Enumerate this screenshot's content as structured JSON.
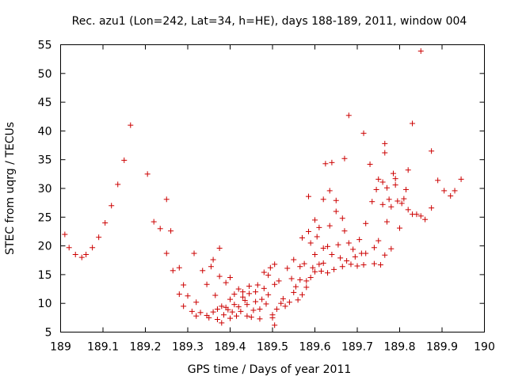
{
  "chart_data": {
    "type": "scatter",
    "title": "Rec. azu1 (Lon=242, Lat=34, h=HE), days 188-189, 2011, window 004",
    "xlabel": "GPS time / Days of year 2011",
    "ylabel": "STEC from uqrg / TECUs",
    "xlim": [
      189,
      190
    ],
    "ylim": [
      5,
      55
    ],
    "xticks": [
      189,
      189.1,
      189.2,
      189.3,
      189.4,
      189.5,
      189.6,
      189.7,
      189.8,
      189.9,
      190
    ],
    "xtick_labels": [
      "189",
      "189.1",
      "189.2",
      "189.3",
      "189.4",
      "189.5",
      "189.6",
      "189.7",
      "189.8",
      "189.9",
      "190"
    ],
    "yticks": [
      5,
      10,
      15,
      20,
      25,
      30,
      35,
      40,
      45,
      50,
      55
    ],
    "ytick_labels": [
      "5",
      "10",
      "15",
      "20",
      "25",
      "30",
      "35",
      "40",
      "45",
      "50",
      "55"
    ],
    "grid": false,
    "marker": "+",
    "color": "#cc0000",
    "series": [
      {
        "name": "STEC",
        "points": [
          [
            189.01,
            22.0
          ],
          [
            189.02,
            19.7
          ],
          [
            189.035,
            18.5
          ],
          [
            189.05,
            18.0
          ],
          [
            189.06,
            18.5
          ],
          [
            189.075,
            19.7
          ],
          [
            189.09,
            21.5
          ],
          [
            189.105,
            24.0
          ],
          [
            189.12,
            27.0
          ],
          [
            189.135,
            30.7
          ],
          [
            189.15,
            34.9
          ],
          [
            189.165,
            41.0
          ],
          [
            189.205,
            32.5
          ],
          [
            189.22,
            24.2
          ],
          [
            189.235,
            23.0
          ],
          [
            189.25,
            18.7
          ],
          [
            189.25,
            28.1
          ],
          [
            189.26,
            22.6
          ],
          [
            189.265,
            15.7
          ],
          [
            189.28,
            16.2
          ],
          [
            189.28,
            11.6
          ],
          [
            189.29,
            9.5
          ],
          [
            189.29,
            13.2
          ],
          [
            189.3,
            11.3
          ],
          [
            189.31,
            8.6
          ],
          [
            189.315,
            18.7
          ],
          [
            189.32,
            10.2
          ],
          [
            189.32,
            7.8
          ],
          [
            189.33,
            8.4
          ],
          [
            189.335,
            15.7
          ],
          [
            189.345,
            7.9
          ],
          [
            189.345,
            13.3
          ],
          [
            189.35,
            7.5
          ],
          [
            189.355,
            16.4
          ],
          [
            189.36,
            8.5
          ],
          [
            189.36,
            17.6
          ],
          [
            189.365,
            11.4
          ],
          [
            189.37,
            9.0
          ],
          [
            189.37,
            7.2
          ],
          [
            189.375,
            14.7
          ],
          [
            189.375,
            19.6
          ],
          [
            189.38,
            6.6
          ],
          [
            189.38,
            9.5
          ],
          [
            189.385,
            8.0
          ],
          [
            189.39,
            9.3
          ],
          [
            189.39,
            13.6
          ],
          [
            189.395,
            8.9
          ],
          [
            189.4,
            7.4
          ],
          [
            189.4,
            10.7
          ],
          [
            189.4,
            14.5
          ],
          [
            189.405,
            8.5
          ],
          [
            189.41,
            9.8
          ],
          [
            189.41,
            11.6
          ],
          [
            189.415,
            7.8
          ],
          [
            189.42,
            12.5
          ],
          [
            189.42,
            9.4
          ],
          [
            189.425,
            8.6
          ],
          [
            189.43,
            11.1
          ],
          [
            189.43,
            12.0
          ],
          [
            189.435,
            10.5
          ],
          [
            189.44,
            7.8
          ],
          [
            189.44,
            9.8
          ],
          [
            189.445,
            13.0
          ],
          [
            189.445,
            11.7
          ],
          [
            189.45,
            7.6
          ],
          [
            189.455,
            8.8
          ],
          [
            189.46,
            10.3
          ],
          [
            189.46,
            12.0
          ],
          [
            189.465,
            13.2
          ],
          [
            189.47,
            9.0
          ],
          [
            189.47,
            7.3
          ],
          [
            189.475,
            10.7
          ],
          [
            189.48,
            12.6
          ],
          [
            189.48,
            15.4
          ],
          [
            189.485,
            9.9
          ],
          [
            189.49,
            11.5
          ],
          [
            189.49,
            14.9
          ],
          [
            189.495,
            16.2
          ],
          [
            189.5,
            8.0
          ],
          [
            189.5,
            7.5
          ],
          [
            189.505,
            6.2
          ],
          [
            189.505,
            13.3
          ],
          [
            189.505,
            16.8
          ],
          [
            189.51,
            9.0
          ],
          [
            189.515,
            13.9
          ],
          [
            189.52,
            10.0
          ],
          [
            189.525,
            10.8
          ],
          [
            189.53,
            9.5
          ],
          [
            189.535,
            16.1
          ],
          [
            189.54,
            10.2
          ],
          [
            189.545,
            14.3
          ],
          [
            189.55,
            17.6
          ],
          [
            189.55,
            11.9
          ],
          [
            189.555,
            12.9
          ],
          [
            189.56,
            10.6
          ],
          [
            189.565,
            16.4
          ],
          [
            189.565,
            14.1
          ],
          [
            189.57,
            11.5
          ],
          [
            189.57,
            21.4
          ],
          [
            189.575,
            16.9
          ],
          [
            189.58,
            12.8
          ],
          [
            189.58,
            13.9
          ],
          [
            189.585,
            22.5
          ],
          [
            189.585,
            28.6
          ],
          [
            189.59,
            14.5
          ],
          [
            189.59,
            20.5
          ],
          [
            189.595,
            16.2
          ],
          [
            189.6,
            18.5
          ],
          [
            189.6,
            24.5
          ],
          [
            189.6,
            15.5
          ],
          [
            189.605,
            21.6
          ],
          [
            189.61,
            16.8
          ],
          [
            189.61,
            23.2
          ],
          [
            189.615,
            15.6
          ],
          [
            189.62,
            19.6
          ],
          [
            189.62,
            17.0
          ],
          [
            189.62,
            28.1
          ],
          [
            189.625,
            34.3
          ],
          [
            189.63,
            19.9
          ],
          [
            189.63,
            15.3
          ],
          [
            189.635,
            29.6
          ],
          [
            189.635,
            23.5
          ],
          [
            189.64,
            34.5
          ],
          [
            189.64,
            18.5
          ],
          [
            189.645,
            15.9
          ],
          [
            189.65,
            27.9
          ],
          [
            189.65,
            26.0
          ],
          [
            189.655,
            20.2
          ],
          [
            189.66,
            17.9
          ],
          [
            189.665,
            16.4
          ],
          [
            189.665,
            24.8
          ],
          [
            189.67,
            35.2
          ],
          [
            189.67,
            22.6
          ],
          [
            189.675,
            17.4
          ],
          [
            189.68,
            42.7
          ],
          [
            189.68,
            20.5
          ],
          [
            189.685,
            16.8
          ],
          [
            189.69,
            19.4
          ],
          [
            189.695,
            18.1
          ],
          [
            189.7,
            16.5
          ],
          [
            189.705,
            21.1
          ],
          [
            189.71,
            18.7
          ],
          [
            189.715,
            39.6
          ],
          [
            189.715,
            16.7
          ],
          [
            189.72,
            23.9
          ],
          [
            189.72,
            18.7
          ],
          [
            189.73,
            34.2
          ],
          [
            189.735,
            27.7
          ],
          [
            189.74,
            16.9
          ],
          [
            189.74,
            19.7
          ],
          [
            189.745,
            29.8
          ],
          [
            189.75,
            31.6
          ],
          [
            189.75,
            20.9
          ],
          [
            189.755,
            16.7
          ],
          [
            189.76,
            27.2
          ],
          [
            189.76,
            31.1
          ],
          [
            189.765,
            36.2
          ],
          [
            189.765,
            37.8
          ],
          [
            189.765,
            18.4
          ],
          [
            189.77,
            24.2
          ],
          [
            189.77,
            30.1
          ],
          [
            189.775,
            28.1
          ],
          [
            189.78,
            26.8
          ],
          [
            189.78,
            19.5
          ],
          [
            189.785,
            32.6
          ],
          [
            189.79,
            30.6
          ],
          [
            189.79,
            31.7
          ],
          [
            189.795,
            27.8
          ],
          [
            189.8,
            23.1
          ],
          [
            189.805,
            27.4
          ],
          [
            189.81,
            28.2
          ],
          [
            189.815,
            29.8
          ],
          [
            189.82,
            33.2
          ],
          [
            189.82,
            26.3
          ],
          [
            189.83,
            41.3
          ],
          [
            189.83,
            25.5
          ],
          [
            189.84,
            25.5
          ],
          [
            189.85,
            25.2
          ],
          [
            189.85,
            53.9
          ],
          [
            189.86,
            24.6
          ],
          [
            189.875,
            36.5
          ],
          [
            189.875,
            26.6
          ],
          [
            189.89,
            31.4
          ],
          [
            189.905,
            29.6
          ],
          [
            189.92,
            28.7
          ],
          [
            189.93,
            29.6
          ],
          [
            189.945,
            31.6
          ]
        ]
      }
    ]
  }
}
